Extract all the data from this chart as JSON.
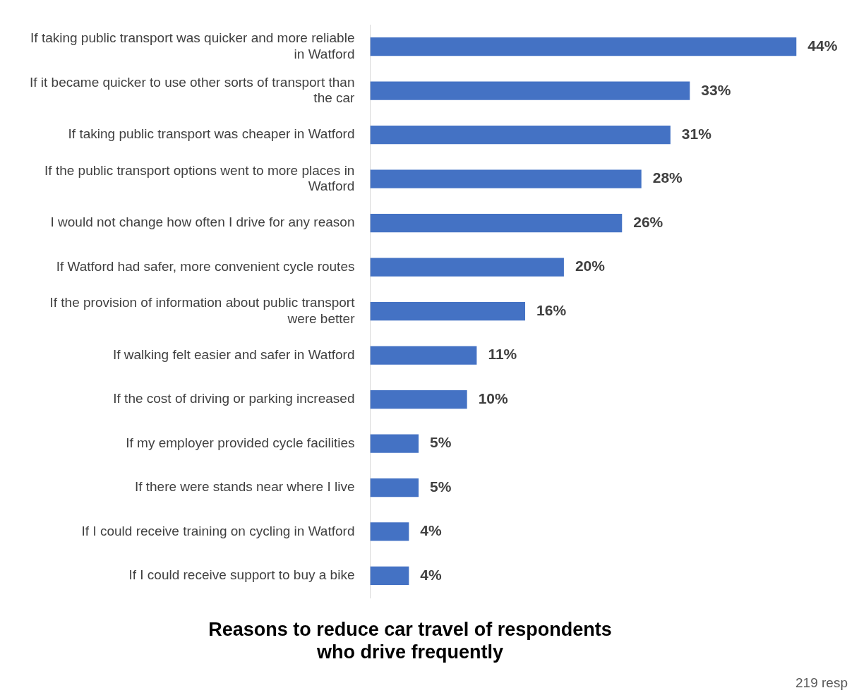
{
  "chart_data": {
    "type": "bar",
    "orientation": "horizontal",
    "title": "Reasons to reduce car travel of respondents who drive frequently",
    "categories": [
      "If taking public transport was quicker and more reliable in Watford",
      "If it became quicker to use other sorts of transport than the car",
      "If taking public transport was cheaper in Watford",
      "If the public transport options went to more places in Watford",
      "I would not change how often I drive for any reason",
      "If Watford had safer, more convenient cycle routes",
      "If the provision of information about public transport were better",
      "If walking felt easier and safer in Watford",
      "If the cost of driving or parking increased",
      "If my employer provided cycle facilities",
      "If there were stands near where I live",
      "If I could receive training on cycling in Watford",
      "If I could receive support to buy a bike"
    ],
    "values": [
      44,
      33,
      31,
      28,
      26,
      20,
      16,
      11,
      10,
      5,
      5,
      4,
      4
    ],
    "value_labels": [
      "44%",
      "33%",
      "31%",
      "28%",
      "26%",
      "20%",
      "16%",
      "11%",
      "10%",
      "5%",
      "5%",
      "4%",
      "4%"
    ],
    "color": "#4472c4",
    "legend": false,
    "annotations": [
      "219 resp"
    ]
  }
}
